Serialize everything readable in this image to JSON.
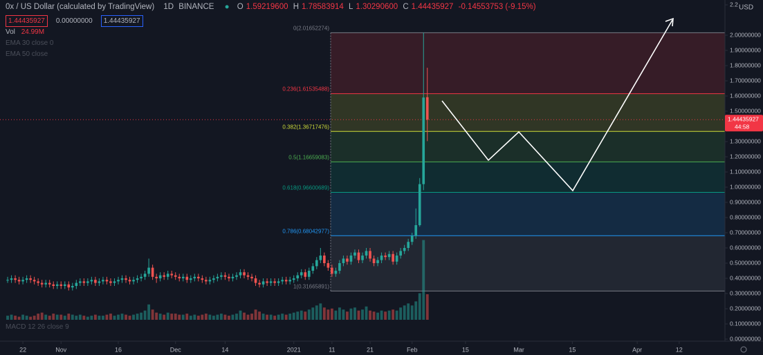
{
  "header": {
    "symbol": "0x / US Dollar (calculated by TradingView)",
    "interval": "1D",
    "exchange": "BINANCE",
    "ohlc": [
      {
        "label": "O",
        "value": "1.59219600"
      },
      {
        "label": "H",
        "value": "1.78583914"
      },
      {
        "label": "L",
        "value": "1.30290600"
      },
      {
        "label": "C",
        "value": "1.44435927"
      }
    ],
    "change": "-0.14553753 (-9.15%)",
    "inputs": [
      "1.44435927",
      "0.00000000",
      "1.44435927"
    ]
  },
  "indicators": {
    "volume_label": "Vol",
    "volume_value": "24.99M",
    "ema30": "EMA 30 close 0",
    "ema50": "EMA 50 close",
    "macd": "MACD 12 26 close 9"
  },
  "chart_data": {
    "type": "candlestick",
    "x": [
      "2020-10-18",
      "2020-10-19",
      "2020-10-20",
      "2020-10-21",
      "2020-10-22",
      "2020-10-23",
      "2020-10-24",
      "2020-10-25",
      "2020-10-26",
      "2020-10-27",
      "2020-10-28",
      "2020-10-29",
      "2020-10-30",
      "2020-10-31",
      "2020-11-01",
      "2020-11-02",
      "2020-11-03",
      "2020-11-04",
      "2020-11-05",
      "2020-11-06",
      "2020-11-07",
      "2020-11-08",
      "2020-11-09",
      "2020-11-10",
      "2020-11-11",
      "2020-11-12",
      "2020-11-13",
      "2020-11-14",
      "2020-11-15",
      "2020-11-16",
      "2020-11-17",
      "2020-11-18",
      "2020-11-19",
      "2020-11-20",
      "2020-11-21",
      "2020-11-22",
      "2020-11-23",
      "2020-11-24",
      "2020-11-25",
      "2020-11-26",
      "2020-11-27",
      "2020-11-28",
      "2020-11-29",
      "2020-11-30",
      "2020-12-01",
      "2020-12-02",
      "2020-12-03",
      "2020-12-04",
      "2020-12-05",
      "2020-12-06",
      "2020-12-07",
      "2020-12-08",
      "2020-12-09",
      "2020-12-10",
      "2020-12-11",
      "2020-12-12",
      "2020-12-13",
      "2020-12-14",
      "2020-12-15",
      "2020-12-16",
      "2020-12-17",
      "2020-12-18",
      "2020-12-19",
      "2020-12-20",
      "2020-12-21",
      "2020-12-22",
      "2020-12-23",
      "2020-12-24",
      "2020-12-25",
      "2020-12-26",
      "2020-12-27",
      "2020-12-28",
      "2020-12-29",
      "2020-12-30",
      "2020-12-31",
      "2021-01-01",
      "2021-01-02",
      "2021-01-03",
      "2021-01-04",
      "2021-01-05",
      "2021-01-06",
      "2021-01-07",
      "2021-01-08",
      "2021-01-09",
      "2021-01-10",
      "2021-01-11",
      "2021-01-12",
      "2021-01-13",
      "2021-01-14",
      "2021-01-15",
      "2021-01-16",
      "2021-01-17",
      "2021-01-18",
      "2021-01-19",
      "2021-01-20",
      "2021-01-21",
      "2021-01-22",
      "2021-01-23",
      "2021-01-24",
      "2021-01-25",
      "2021-01-26",
      "2021-01-27",
      "2021-01-28",
      "2021-01-29",
      "2021-01-30",
      "2021-01-31",
      "2021-02-01",
      "2021-02-02",
      "2021-02-03",
      "2021-02-04",
      "2021-02-05"
    ],
    "open": [
      0.39,
      0.39,
      0.4,
      0.39,
      0.38,
      0.39,
      0.4,
      0.39,
      0.38,
      0.37,
      0.36,
      0.37,
      0.36,
      0.35,
      0.36,
      0.35,
      0.36,
      0.34,
      0.35,
      0.37,
      0.38,
      0.37,
      0.38,
      0.39,
      0.37,
      0.38,
      0.39,
      0.38,
      0.37,
      0.38,
      0.39,
      0.4,
      0.39,
      0.38,
      0.39,
      0.4,
      0.41,
      0.43,
      0.47,
      0.41,
      0.4,
      0.42,
      0.41,
      0.43,
      0.42,
      0.41,
      0.4,
      0.41,
      0.39,
      0.4,
      0.41,
      0.4,
      0.39,
      0.38,
      0.39,
      0.4,
      0.41,
      0.42,
      0.41,
      0.4,
      0.41,
      0.42,
      0.44,
      0.42,
      0.41,
      0.4,
      0.37,
      0.36,
      0.38,
      0.37,
      0.38,
      0.37,
      0.38,
      0.39,
      0.38,
      0.39,
      0.4,
      0.42,
      0.44,
      0.41,
      0.45,
      0.48,
      0.52,
      0.55,
      0.5,
      0.47,
      0.43,
      0.45,
      0.5,
      0.53,
      0.51,
      0.55,
      0.57,
      0.52,
      0.55,
      0.58,
      0.53,
      0.5,
      0.52,
      0.55,
      0.54,
      0.56,
      0.51,
      0.55,
      0.58,
      0.6,
      0.64,
      0.68,
      0.75,
      1.02,
      1.592196
    ],
    "high": [
      0.41,
      0.42,
      0.42,
      0.41,
      0.41,
      0.42,
      0.42,
      0.41,
      0.4,
      0.39,
      0.39,
      0.39,
      0.38,
      0.38,
      0.38,
      0.38,
      0.38,
      0.37,
      0.39,
      0.4,
      0.4,
      0.4,
      0.41,
      0.41,
      0.4,
      0.41,
      0.41,
      0.4,
      0.4,
      0.41,
      0.42,
      0.42,
      0.41,
      0.41,
      0.42,
      0.43,
      0.45,
      0.53,
      0.49,
      0.43,
      0.44,
      0.44,
      0.45,
      0.45,
      0.44,
      0.43,
      0.43,
      0.43,
      0.42,
      0.43,
      0.43,
      0.42,
      0.41,
      0.41,
      0.42,
      0.43,
      0.44,
      0.44,
      0.43,
      0.43,
      0.44,
      0.46,
      0.46,
      0.44,
      0.43,
      0.42,
      0.39,
      0.4,
      0.4,
      0.4,
      0.4,
      0.4,
      0.41,
      0.41,
      0.41,
      0.42,
      0.44,
      0.46,
      0.46,
      0.47,
      0.5,
      0.54,
      0.6,
      0.57,
      0.52,
      0.49,
      0.47,
      0.52,
      0.55,
      0.55,
      0.57,
      0.59,
      0.59,
      0.57,
      0.6,
      0.6,
      0.55,
      0.54,
      0.57,
      0.57,
      0.58,
      0.58,
      0.57,
      0.6,
      0.62,
      0.66,
      0.7,
      0.86,
      1.06,
      2.01652274,
      1.78583914
    ],
    "low": [
      0.37,
      0.37,
      0.37,
      0.36,
      0.36,
      0.37,
      0.37,
      0.36,
      0.35,
      0.34,
      0.34,
      0.34,
      0.33,
      0.33,
      0.33,
      0.33,
      0.32,
      0.32,
      0.33,
      0.35,
      0.35,
      0.35,
      0.36,
      0.35,
      0.35,
      0.36,
      0.36,
      0.35,
      0.35,
      0.36,
      0.37,
      0.37,
      0.36,
      0.36,
      0.37,
      0.38,
      0.39,
      0.41,
      0.39,
      0.37,
      0.38,
      0.39,
      0.39,
      0.4,
      0.39,
      0.38,
      0.38,
      0.37,
      0.37,
      0.38,
      0.38,
      0.37,
      0.36,
      0.36,
      0.37,
      0.38,
      0.39,
      0.39,
      0.38,
      0.38,
      0.39,
      0.4,
      0.4,
      0.39,
      0.38,
      0.35,
      0.34,
      0.34,
      0.35,
      0.35,
      0.35,
      0.35,
      0.36,
      0.36,
      0.36,
      0.37,
      0.38,
      0.4,
      0.39,
      0.39,
      0.43,
      0.46,
      0.5,
      0.48,
      0.45,
      0.41,
      0.41,
      0.43,
      0.48,
      0.49,
      0.49,
      0.53,
      0.5,
      0.5,
      0.53,
      0.51,
      0.48,
      0.48,
      0.5,
      0.52,
      0.52,
      0.49,
      0.49,
      0.53,
      0.56,
      0.58,
      0.62,
      0.66,
      0.74,
      0.98,
      1.302906
    ],
    "close": [
      0.39,
      0.4,
      0.39,
      0.38,
      0.39,
      0.4,
      0.39,
      0.38,
      0.37,
      0.36,
      0.37,
      0.36,
      0.35,
      0.36,
      0.35,
      0.36,
      0.34,
      0.35,
      0.37,
      0.38,
      0.37,
      0.38,
      0.39,
      0.37,
      0.38,
      0.39,
      0.38,
      0.37,
      0.38,
      0.39,
      0.4,
      0.39,
      0.38,
      0.39,
      0.4,
      0.41,
      0.43,
      0.47,
      0.41,
      0.4,
      0.42,
      0.41,
      0.43,
      0.42,
      0.41,
      0.4,
      0.41,
      0.39,
      0.4,
      0.41,
      0.4,
      0.39,
      0.38,
      0.39,
      0.4,
      0.41,
      0.42,
      0.41,
      0.4,
      0.41,
      0.42,
      0.44,
      0.42,
      0.41,
      0.4,
      0.37,
      0.36,
      0.38,
      0.37,
      0.38,
      0.37,
      0.38,
      0.39,
      0.38,
      0.39,
      0.4,
      0.42,
      0.44,
      0.41,
      0.45,
      0.48,
      0.52,
      0.55,
      0.5,
      0.47,
      0.43,
      0.45,
      0.5,
      0.53,
      0.51,
      0.55,
      0.57,
      0.52,
      0.55,
      0.58,
      0.53,
      0.5,
      0.52,
      0.55,
      0.54,
      0.56,
      0.51,
      0.55,
      0.58,
      0.6,
      0.64,
      0.68,
      0.75,
      1.02,
      1.59,
      1.44435927
    ],
    "volume": [
      4,
      5,
      4,
      3,
      5,
      4,
      3,
      4,
      6,
      7,
      5,
      4,
      6,
      5,
      5,
      4,
      6,
      5,
      4,
      5,
      4,
      3,
      4,
      5,
      4,
      4,
      5,
      6,
      4,
      5,
      6,
      5,
      4,
      5,
      6,
      7,
      9,
      15,
      10,
      7,
      6,
      5,
      7,
      6,
      6,
      5,
      5,
      6,
      4,
      5,
      4,
      5,
      6,
      5,
      4,
      5,
      6,
      5,
      4,
      5,
      6,
      9,
      7,
      5,
      6,
      10,
      8,
      6,
      5,
      5,
      4,
      5,
      6,
      5,
      6,
      7,
      8,
      9,
      8,
      10,
      12,
      14,
      16,
      12,
      10,
      11,
      9,
      12,
      10,
      8,
      11,
      12,
      9,
      10,
      13,
      9,
      8,
      7,
      9,
      8,
      9,
      10,
      9,
      12,
      14,
      16,
      14,
      18,
      26,
      78,
      24.99
    ],
    "colors": {
      "up": "#26a69a",
      "down": "#ef5350"
    },
    "xlim": [
      "2020-10-16",
      "2021-04-24"
    ],
    "xticks": [
      {
        "value": "2020-10-22",
        "label": "22"
      },
      {
        "value": "2020-11-01",
        "label": "Nov"
      },
      {
        "value": "2020-11-16",
        "label": "16"
      },
      {
        "value": "2020-12-01",
        "label": "Dec"
      },
      {
        "value": "2020-12-14",
        "label": "14"
      },
      {
        "value": "2021-01-01",
        "label": "2021"
      },
      {
        "value": "2021-01-11",
        "label": "11"
      },
      {
        "value": "2021-01-21",
        "label": "21"
      },
      {
        "value": "2021-02-01",
        "label": "Feb"
      },
      {
        "value": "2021-02-15",
        "label": "15"
      },
      {
        "value": "2021-03-01",
        "label": "Mar"
      },
      {
        "value": "2021-03-15",
        "label": "15"
      },
      {
        "value": "2021-04-01",
        "label": "Apr"
      },
      {
        "value": "2021-04-12",
        "label": "12"
      }
    ],
    "ylim": [
      0,
      2.2
    ],
    "yticks": [
      {
        "value": 0,
        "label": "0.00000000"
      },
      {
        "value": 0.1,
        "label": "0.10000000"
      },
      {
        "value": 0.2,
        "label": "0.20000000"
      },
      {
        "value": 0.3,
        "label": "0.30000000"
      },
      {
        "value": 0.4,
        "label": "0.40000000"
      },
      {
        "value": 0.5,
        "label": "0.50000000"
      },
      {
        "value": 0.6,
        "label": "0.60000000"
      },
      {
        "value": 0.7,
        "label": "0.70000000"
      },
      {
        "value": 0.8,
        "label": "0.80000000"
      },
      {
        "value": 0.9,
        "label": "0.90000000"
      },
      {
        "value": 1,
        "label": "1.00000000"
      },
      {
        "value": 1.1,
        "label": "1.10000000"
      },
      {
        "value": 1.2,
        "label": "1.20000000"
      },
      {
        "value": 1.3,
        "label": "1.30000000"
      },
      {
        "value": 1.4,
        "label": "1.40000000"
      },
      {
        "value": 1.5,
        "label": "1.50000000"
      },
      {
        "value": 1.6,
        "label": "1.60000000"
      },
      {
        "value": 1.7,
        "label": "1.70000000"
      },
      {
        "value": 1.8,
        "label": "1.80000000"
      },
      {
        "value": 1.9,
        "label": "1.90000000"
      },
      {
        "value": 2,
        "label": "2.00000000"
      },
      2.2
    ],
    "y_unit": "USD",
    "last_price": 1.44435927,
    "countdown": "44:58",
    "fib_levels": [
      {
        "label": "0(2.01652274)",
        "value": 2.01652274,
        "color": "#787b86"
      },
      {
        "label": "0.236(1.61535488)",
        "value": 1.61535488,
        "color": "#f23645"
      },
      {
        "label": "0.382(1.36717476)",
        "value": 1.36717476,
        "color": "#cddc39"
      },
      {
        "label": "0.5(1.16659083)",
        "value": 1.16659083,
        "color": "#4caf50"
      },
      {
        "label": "0.618(0.96600689)",
        "value": 0.96600689,
        "color": "#089981"
      },
      {
        "label": "0.786(0.68042977)",
        "value": 0.68042977,
        "color": "#2196f3"
      },
      {
        "label": "1(0.31665891)",
        "value": 0.31665891,
        "color": "#787b86"
      }
    ]
  }
}
